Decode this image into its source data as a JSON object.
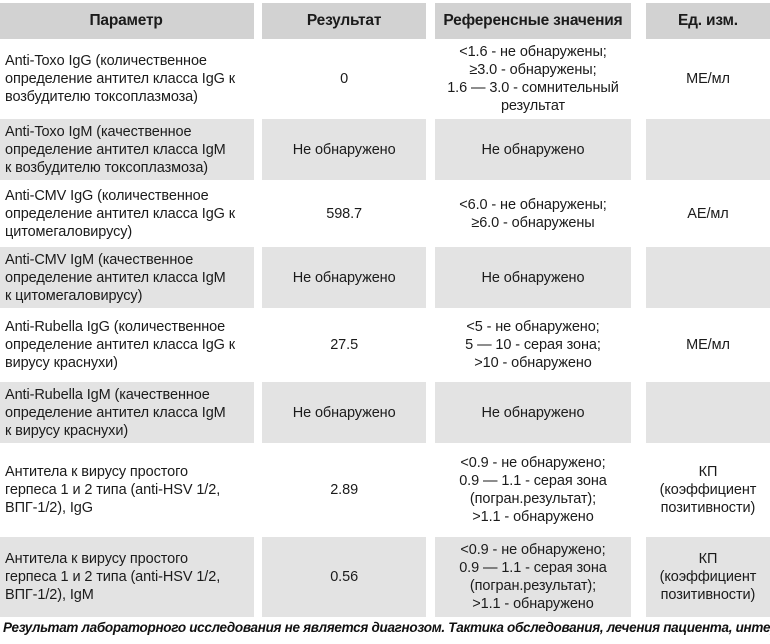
{
  "colors": {
    "header_bg": "#d2d2d2",
    "alt_row_bg": "#e3e3e3"
  },
  "table": {
    "columns": {
      "parameter": "Параметр",
      "result": "Результат",
      "reference": "Референсные значения",
      "units": "Ед. изм."
    },
    "rows": [
      {
        "parameter": "Anti-Toxo IgG (количественное\nопределение антител класса IgG к\nвозбудителю токсоплазмоза)",
        "result": "0",
        "reference": "<1.6 - не обнаружены;\n≥3.0 - обнаружены;\n1.6 — 3.0 - сомнительный\nрезультат",
        "unit": "МЕ/мл"
      },
      {
        "parameter": "Anti-Toxo IgM (качественное\nопределение антител класса IgM\nк возбудителю токсоплазмоза)",
        "result": "Не обнаружено",
        "reference": "Не обнаружено",
        "unit": ""
      },
      {
        "parameter": "Anti-CMV IgG (количественное\nопределение антител класса IgG к\nцитомегаловирусу)",
        "result": "598.7",
        "reference": "<6.0 - не обнаружены;\n≥6.0 - обнаружены",
        "unit": "АЕ/мл"
      },
      {
        "parameter": "Anti-CMV IgM (качественное\nопределение антител класса IgM\nк цитомегаловирусу)",
        "result": "Не обнаружено",
        "reference": "Не обнаружено",
        "unit": ""
      },
      {
        "parameter": "Anti-Rubella IgG (количественное\nопределение антител класса IgG к\nвирусу краснухи)",
        "result": "27.5",
        "reference": "<5 - не обнаружено;\n5 — 10 - серая зона;\n>10 - обнаружено",
        "unit": "МЕ/мл"
      },
      {
        "parameter": "Anti-Rubella IgM (качественное\nопределение антител класса IgM\nк вирусу краснухи)",
        "result": "Не обнаружено",
        "reference": "Не обнаружено",
        "unit": ""
      },
      {
        "parameter": "Антитела к вирусу простого\nгерпеса 1 и 2 типа (anti-HSV 1/2,\nВПГ-1/2), IgG",
        "result": "2.89",
        "reference": "<0.9 - не обнаружено;\n0.9 — 1.1 - серая зона\n(погран.результат);\n>1.1 - обнаружено",
        "unit": "КП\n(коэффициент\nпозитивности)"
      },
      {
        "parameter": "Антитела к вирусу простого\nгерпеса 1 и 2 типа (anti-HSV 1/2,\nВПГ-1/2), IgM",
        "result": "0.56",
        "reference": "<0.9 - не обнаружено;\n0.9 — 1.1 - серая зона\n(погран.результат);\n>1.1 - обнаружено",
        "unit": "КП\n(коэффициент\nпозитивности)"
      }
    ]
  },
  "footer": {
    "note": "Результат лабораторного исследования не является диагнозом. Тактика обследования, лечения пациента, интерпретация"
  }
}
